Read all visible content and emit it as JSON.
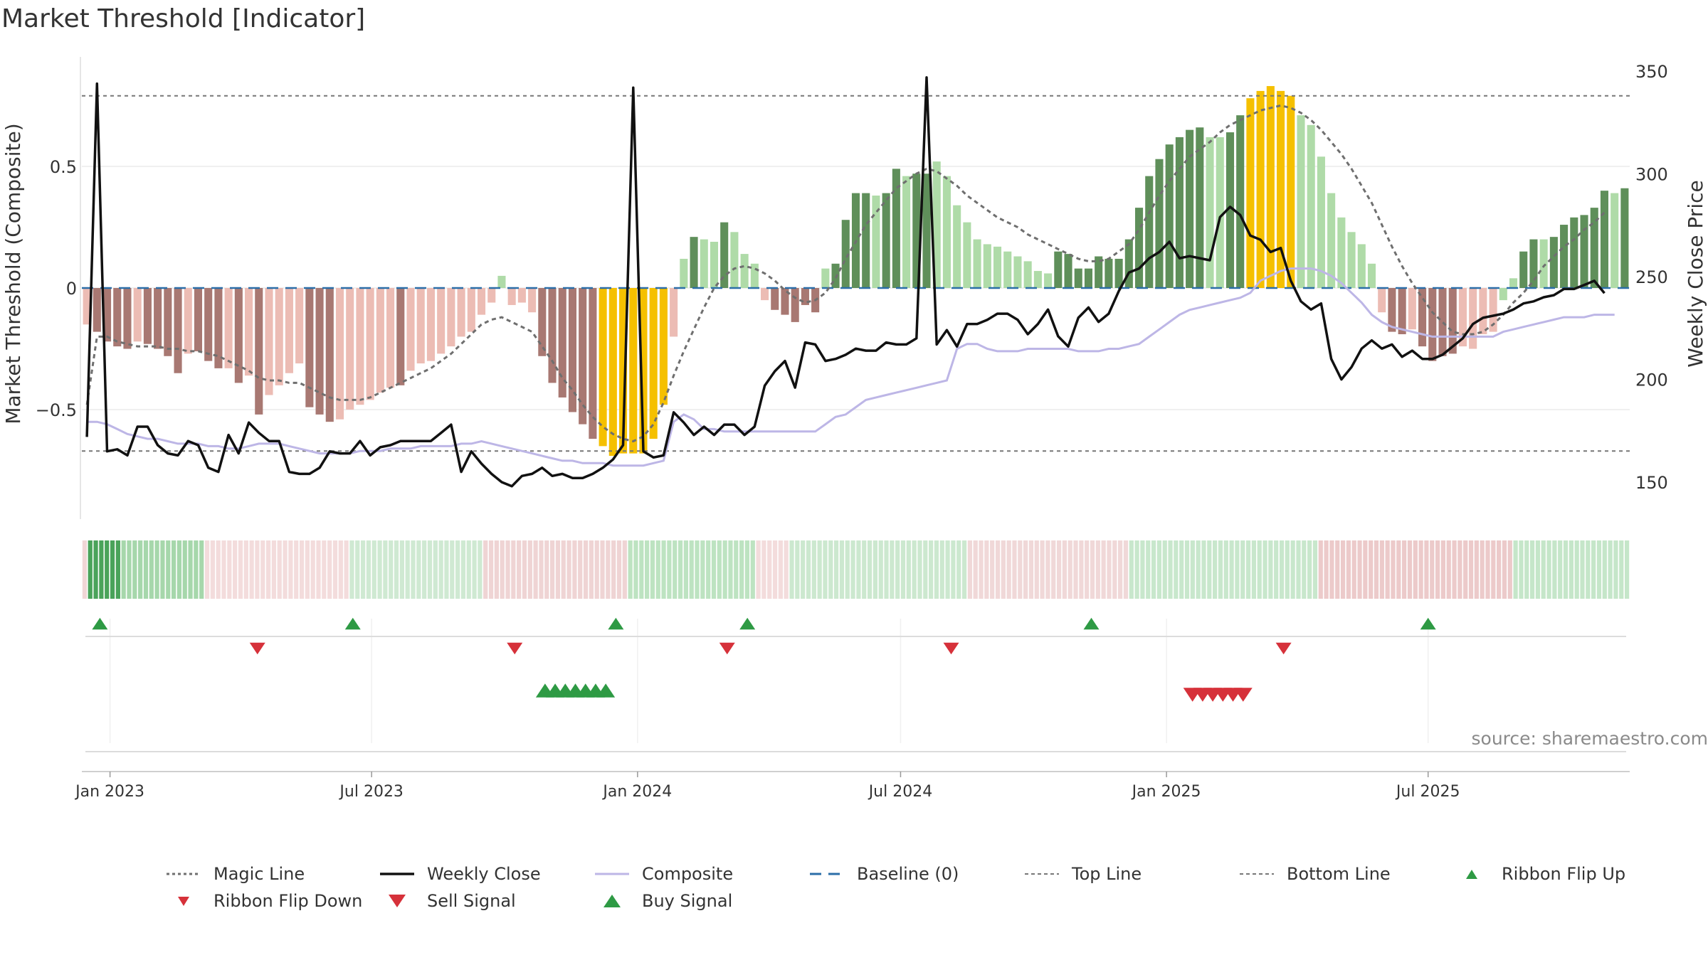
{
  "title": "Market Threshold [Indicator]",
  "source_note": "source: sharemaestro.com",
  "colors": {
    "bar_pos_dark": "#5f8f5a",
    "bar_pos_light": "#afdba8",
    "bar_neg_dark": "#a87872",
    "bar_neg_light": "#ecbcb4",
    "bar_extreme": "#f5c000",
    "magic_line": "#6f6f6f",
    "weekly_close": "#111111",
    "composite": "#bdb6e6",
    "baseline": "#2b6ea8",
    "threshold_line": "#777777",
    "buy": "#2e9a44",
    "sell": "#d6313a"
  },
  "chart_data": {
    "type": "bar",
    "title": "Market Threshold [Indicator]",
    "ylabel": "Market Threshold (Composite)",
    "y2label": "Weekly Close Price",
    "ylim": [
      -0.95,
      0.95
    ],
    "y2lim": [
      132,
      357
    ],
    "yticks": [
      0.5,
      0,
      -0.5
    ],
    "ytick_labels": [
      "0.5",
      "0",
      "−0.5"
    ],
    "y2ticks": [
      350,
      300,
      250,
      200,
      150
    ],
    "xticks": [
      "2023-01-01",
      "2023-07-01",
      "2024-01-01",
      "2024-07-01",
      "2025-01-01",
      "2025-07-01"
    ],
    "xtick_labels": [
      "Jan 2023",
      "Jul 2023",
      "Jan 2024",
      "Jul 2024",
      "Jan 2025",
      "Jul 2025"
    ],
    "x_start": "2022-12-16",
    "top_line": 0.79,
    "bottom_line": -0.67,
    "baseline": 0,
    "composite_bars": [
      -0.15,
      -0.18,
      -0.22,
      -0.24,
      -0.25,
      -0.22,
      -0.23,
      -0.25,
      -0.28,
      -0.35,
      -0.27,
      -0.26,
      -0.3,
      -0.33,
      -0.33,
      -0.39,
      -0.36,
      -0.52,
      -0.44,
      -0.4,
      -0.35,
      -0.31,
      -0.49,
      -0.52,
      -0.55,
      -0.54,
      -0.5,
      -0.48,
      -0.46,
      -0.43,
      -0.41,
      -0.4,
      -0.34,
      -0.31,
      -0.3,
      -0.27,
      -0.24,
      -0.2,
      -0.18,
      -0.11,
      -0.06,
      0.05,
      -0.07,
      -0.06,
      -0.1,
      -0.28,
      -0.39,
      -0.45,
      -0.51,
      -0.56,
      -0.62,
      -0.65,
      -0.69,
      -0.68,
      -0.68,
      -0.68,
      -0.62,
      -0.48,
      -0.2,
      0.12,
      0.21,
      0.2,
      0.19,
      0.27,
      0.23,
      0.14,
      0.1,
      -0.05,
      -0.09,
      -0.11,
      -0.14,
      -0.07,
      -0.1,
      0.08,
      0.1,
      0.28,
      0.39,
      0.39,
      0.38,
      0.39,
      0.49,
      0.46,
      0.47,
      0.47,
      0.52,
      0.46,
      0.34,
      0.27,
      0.2,
      0.18,
      0.17,
      0.15,
      0.13,
      0.11,
      0.07,
      0.06,
      0.15,
      0.14,
      0.08,
      0.08,
      0.13,
      0.12,
      0.12,
      0.2,
      0.33,
      0.46,
      0.53,
      0.59,
      0.62,
      0.65,
      0.66,
      0.62,
      0.62,
      0.64,
      0.71,
      0.78,
      0.81,
      0.83,
      0.81,
      0.79,
      0.71,
      0.67,
      0.54,
      0.39,
      0.29,
      0.23,
      0.18,
      0.1,
      -0.1,
      -0.18,
      -0.19,
      -0.17,
      -0.24,
      -0.3,
      -0.28,
      -0.27,
      -0.24,
      -0.25,
      -0.19,
      -0.18,
      -0.05,
      0.04,
      0.15,
      0.2,
      0.2,
      0.21,
      0.26,
      0.29,
      0.3,
      0.33,
      0.4,
      0.39,
      0.41
    ],
    "bar_colors": [
      "bar_neg_light",
      "bar_neg_dark",
      "bar_neg_dark",
      "bar_neg_dark",
      "bar_neg_dark",
      "bar_neg_light",
      "bar_neg_dark",
      "bar_neg_dark",
      "bar_neg_dark",
      "bar_neg_dark",
      "bar_neg_light",
      "bar_neg_dark",
      "bar_neg_dark",
      "bar_neg_dark",
      "bar_neg_light",
      "bar_neg_dark",
      "bar_neg_light",
      "bar_neg_dark",
      "bar_neg_light",
      "bar_neg_light",
      "bar_neg_light",
      "bar_neg_light",
      "bar_neg_dark",
      "bar_neg_dark",
      "bar_neg_dark",
      "bar_neg_light",
      "bar_neg_light",
      "bar_neg_light",
      "bar_neg_light",
      "bar_neg_light",
      "bar_neg_light",
      "bar_neg_dark",
      "bar_neg_light",
      "bar_neg_light",
      "bar_neg_light",
      "bar_neg_light",
      "bar_neg_light",
      "bar_neg_light",
      "bar_neg_light",
      "bar_neg_light",
      "bar_neg_light",
      "bar_pos_light",
      "bar_neg_light",
      "bar_neg_light",
      "bar_neg_light",
      "bar_neg_dark",
      "bar_neg_dark",
      "bar_neg_dark",
      "bar_neg_dark",
      "bar_neg_dark",
      "bar_neg_dark",
      "bar_extreme",
      "bar_extreme",
      "bar_extreme",
      "bar_extreme",
      "bar_extreme",
      "bar_extreme",
      "bar_extreme",
      "bar_neg_light",
      "bar_pos_light",
      "bar_pos_dark",
      "bar_pos_light",
      "bar_pos_light",
      "bar_pos_dark",
      "bar_pos_light",
      "bar_pos_light",
      "bar_pos_light",
      "bar_neg_light",
      "bar_neg_dark",
      "bar_neg_dark",
      "bar_neg_dark",
      "bar_neg_dark",
      "bar_neg_dark",
      "bar_pos_light",
      "bar_pos_dark",
      "bar_pos_dark",
      "bar_pos_dark",
      "bar_pos_dark",
      "bar_pos_light",
      "bar_pos_dark",
      "bar_pos_dark",
      "bar_pos_light",
      "bar_pos_dark",
      "bar_pos_dark",
      "bar_pos_light",
      "bar_pos_light",
      "bar_pos_light",
      "bar_pos_light",
      "bar_pos_light",
      "bar_pos_light",
      "bar_pos_light",
      "bar_pos_light",
      "bar_pos_light",
      "bar_pos_light",
      "bar_pos_light",
      "bar_pos_light",
      "bar_pos_dark",
      "bar_pos_dark",
      "bar_pos_dark",
      "bar_pos_dark",
      "bar_pos_dark",
      "bar_pos_dark",
      "bar_pos_dark",
      "bar_pos_dark",
      "bar_pos_dark",
      "bar_pos_dark",
      "bar_pos_dark",
      "bar_pos_dark",
      "bar_pos_dark",
      "bar_pos_dark",
      "bar_pos_dark",
      "bar_pos_light",
      "bar_pos_light",
      "bar_pos_dark",
      "bar_pos_dark",
      "bar_extreme",
      "bar_extreme",
      "bar_extreme",
      "bar_extreme",
      "bar_extreme",
      "bar_pos_light",
      "bar_pos_light",
      "bar_pos_light",
      "bar_pos_light",
      "bar_pos_light",
      "bar_pos_light",
      "bar_pos_light",
      "bar_pos_light",
      "bar_neg_light",
      "bar_neg_dark",
      "bar_neg_dark",
      "bar_neg_light",
      "bar_neg_dark",
      "bar_neg_dark",
      "bar_neg_dark",
      "bar_neg_dark",
      "bar_neg_light",
      "bar_neg_light",
      "bar_neg_light",
      "bar_neg_light",
      "bar_pos_light",
      "bar_pos_light",
      "bar_pos_dark",
      "bar_pos_dark",
      "bar_pos_light",
      "bar_pos_dark",
      "bar_pos_dark",
      "bar_pos_dark",
      "bar_pos_dark",
      "bar_pos_dark",
      "bar_pos_dark",
      "bar_pos_light",
      "bar_pos_dark"
    ],
    "composite_line": [
      -0.55,
      -0.55,
      -0.56,
      -0.58,
      -0.6,
      -0.61,
      -0.62,
      -0.62,
      -0.63,
      -0.64,
      -0.64,
      -0.64,
      -0.65,
      -0.65,
      -0.66,
      -0.66,
      -0.65,
      -0.64,
      -0.64,
      -0.64,
      -0.65,
      -0.66,
      -0.67,
      -0.68,
      -0.68,
      -0.68,
      -0.68,
      -0.67,
      -0.67,
      -0.67,
      -0.66,
      -0.66,
      -0.66,
      -0.65,
      -0.65,
      -0.65,
      -0.65,
      -0.64,
      -0.64,
      -0.63,
      -0.64,
      -0.65,
      -0.66,
      -0.67,
      -0.68,
      -0.69,
      -0.7,
      -0.71,
      -0.71,
      -0.72,
      -0.72,
      -0.72,
      -0.73,
      -0.73,
      -0.73,
      -0.73,
      -0.72,
      -0.71,
      -0.55,
      -0.52,
      -0.54,
      -0.58,
      -0.58,
      -0.59,
      -0.59,
      -0.59,
      -0.59,
      -0.59,
      -0.59,
      -0.59,
      -0.59,
      -0.59,
      -0.59,
      -0.56,
      -0.53,
      -0.52,
      -0.49,
      -0.46,
      -0.45,
      -0.44,
      -0.43,
      -0.42,
      -0.41,
      -0.4,
      -0.39,
      -0.38,
      -0.25,
      -0.23,
      -0.23,
      -0.25,
      -0.26,
      -0.26,
      -0.26,
      -0.25,
      -0.25,
      -0.25,
      -0.25,
      -0.25,
      -0.26,
      -0.26,
      -0.26,
      -0.25,
      -0.25,
      -0.24,
      -0.23,
      -0.2,
      -0.17,
      -0.14,
      -0.11,
      -0.09,
      -0.08,
      -0.07,
      -0.06,
      -0.05,
      -0.04,
      -0.02,
      0.03,
      0.05,
      0.07,
      0.08,
      0.08,
      0.08,
      0.07,
      0.05,
      0.02,
      -0.02,
      -0.06,
      -0.11,
      -0.14,
      -0.16,
      -0.17,
      -0.18,
      -0.19,
      -0.2,
      -0.2,
      -0.2,
      -0.2,
      -0.2,
      -0.2,
      -0.2,
      -0.18,
      -0.17,
      -0.16,
      -0.15,
      -0.14,
      -0.13,
      -0.12,
      -0.12,
      -0.12,
      -0.11,
      -0.11,
      -0.11
    ],
    "magic_line": [
      -0.48,
      -0.2,
      -0.2,
      -0.22,
      -0.23,
      -0.24,
      -0.24,
      -0.24,
      -0.25,
      -0.25,
      -0.26,
      -0.26,
      -0.27,
      -0.28,
      -0.3,
      -0.32,
      -0.34,
      -0.37,
      -0.38,
      -0.38,
      -0.39,
      -0.39,
      -0.41,
      -0.43,
      -0.45,
      -0.46,
      -0.46,
      -0.46,
      -0.45,
      -0.43,
      -0.41,
      -0.39,
      -0.37,
      -0.35,
      -0.33,
      -0.3,
      -0.27,
      -0.23,
      -0.19,
      -0.15,
      -0.13,
      -0.12,
      -0.14,
      -0.16,
      -0.18,
      -0.24,
      -0.3,
      -0.37,
      -0.42,
      -0.48,
      -0.53,
      -0.57,
      -0.6,
      -0.62,
      -0.63,
      -0.61,
      -0.56,
      -0.47,
      -0.36,
      -0.26,
      -0.17,
      -0.08,
      0.0,
      0.05,
      0.08,
      0.09,
      0.08,
      0.06,
      0.03,
      -0.01,
      -0.04,
      -0.06,
      -0.05,
      -0.02,
      0.04,
      0.12,
      0.19,
      0.26,
      0.31,
      0.36,
      0.41,
      0.44,
      0.47,
      0.49,
      0.48,
      0.45,
      0.42,
      0.38,
      0.35,
      0.32,
      0.29,
      0.27,
      0.25,
      0.22,
      0.2,
      0.18,
      0.16,
      0.14,
      0.12,
      0.11,
      0.11,
      0.12,
      0.15,
      0.18,
      0.24,
      0.31,
      0.38,
      0.44,
      0.49,
      0.54,
      0.57,
      0.6,
      0.64,
      0.67,
      0.69,
      0.71,
      0.73,
      0.74,
      0.75,
      0.74,
      0.72,
      0.69,
      0.65,
      0.6,
      0.55,
      0.49,
      0.42,
      0.35,
      0.26,
      0.17,
      0.09,
      0.02,
      -0.04,
      -0.1,
      -0.14,
      -0.18,
      -0.19,
      -0.19,
      -0.18,
      -0.15,
      -0.11,
      -0.06,
      -0.02,
      0.03,
      0.09,
      0.13,
      0.17,
      0.2,
      0.24,
      0.27,
      0.31
    ],
    "weekly_close": [
      172,
      344,
      165,
      166,
      163,
      177,
      177,
      168,
      164,
      163,
      170,
      168,
      157,
      155,
      173,
      164,
      179,
      174,
      170,
      170,
      155,
      154,
      154,
      157,
      165,
      164,
      164,
      170,
      163,
      167,
      168,
      170,
      170,
      170,
      170,
      174,
      178,
      155,
      165,
      159,
      154,
      150,
      148,
      153,
      154,
      157,
      153,
      154,
      152,
      152,
      154,
      157,
      161,
      168,
      342,
      165,
      162,
      163,
      184,
      179,
      173,
      177,
      173,
      178,
      178,
      173,
      177,
      197,
      204,
      209,
      196,
      218,
      217,
      209,
      210,
      212,
      215,
      214,
      214,
      218,
      217,
      217,
      220,
      347,
      217,
      224,
      216,
      227,
      227,
      229,
      232,
      232,
      229,
      222,
      227,
      234,
      221,
      216,
      230,
      235,
      228,
      232,
      243,
      252,
      254,
      259,
      262,
      267,
      259,
      260,
      259,
      258,
      279,
      284,
      280,
      270,
      268,
      262,
      264,
      248,
      238,
      234,
      237,
      210,
      200,
      206,
      215,
      219,
      215,
      217,
      211,
      214,
      210,
      210,
      212,
      216,
      220,
      227,
      230,
      231,
      232,
      234,
      237,
      238,
      240,
      241,
      244,
      244,
      246,
      248,
      242
    ],
    "ribbon": {
      "segments": [
        {
          "from": 0,
          "to": 1,
          "color": "#f0d6d6"
        },
        {
          "from": 1,
          "to": 7,
          "color": "#4aa35a"
        },
        {
          "from": 7,
          "to": 22,
          "color": "#a6d7ab"
        },
        {
          "from": 22,
          "to": 48,
          "color": "#f3dcdc"
        },
        {
          "from": 48,
          "to": 72,
          "color": "#cfe9d2"
        },
        {
          "from": 72,
          "to": 98,
          "color": "#efd4d4"
        },
        {
          "from": 98,
          "to": 121,
          "color": "#bde3c1"
        },
        {
          "from": 121,
          "to": 127,
          "color": "#f3dcdc"
        },
        {
          "from": 127,
          "to": 159,
          "color": "#cce8cf"
        },
        {
          "from": 159,
          "to": 188,
          "color": "#f0d8d8"
        },
        {
          "from": 188,
          "to": 222,
          "color": "#c8e7cc"
        },
        {
          "from": 222,
          "to": 257,
          "color": "#eccaca"
        },
        {
          "from": 257,
          "to": 278,
          "color": "#c5e6c9"
        }
      ],
      "total_cells": 278
    },
    "ribbon_flip_up_dates": [
      "2022-12-25",
      "2023-06-18",
      "2023-12-17",
      "2024-03-17",
      "2024-11-10",
      "2025-07-01"
    ],
    "ribbon_flip_down_dates": [
      "2023-04-13",
      "2023-10-08",
      "2024-03-03",
      "2024-08-05",
      "2025-03-23"
    ],
    "buy_signal_dates": [
      "2023-10-29",
      "2023-11-05",
      "2023-11-12",
      "2023-11-19",
      "2023-11-26",
      "2023-12-03",
      "2023-12-10"
    ],
    "sell_signal_dates": [
      "2025-01-19",
      "2025-01-26",
      "2025-02-02",
      "2025-02-09",
      "2025-02-16",
      "2025-02-23"
    ],
    "legend": [
      {
        "key": "magic",
        "label": "Magic Line"
      },
      {
        "key": "weekly",
        "label": "Weekly Close"
      },
      {
        "key": "composite",
        "label": "Composite"
      },
      {
        "key": "baseline",
        "label": "Baseline (0)"
      },
      {
        "key": "top",
        "label": "Top Line"
      },
      {
        "key": "bottom",
        "label": "Bottom Line"
      },
      {
        "key": "flip_up",
        "label": "Ribbon Flip Up"
      },
      {
        "key": "flip_down",
        "label": "Ribbon Flip Down"
      },
      {
        "key": "sell",
        "label": "Sell Signal"
      },
      {
        "key": "buy",
        "label": "Buy Signal"
      }
    ],
    "legend_placement": "bottom",
    "grid": true
  }
}
